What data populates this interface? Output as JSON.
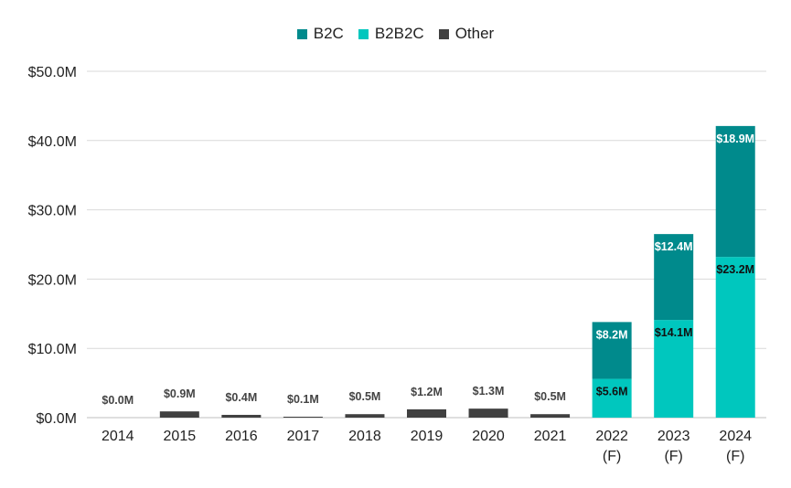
{
  "chart_data": {
    "type": "bar",
    "stacked": true,
    "categories": [
      "2014",
      "2015",
      "2016",
      "2017",
      "2018",
      "2019",
      "2020",
      "2021",
      "2022 (F)",
      "2023 (F)",
      "2024 (F)"
    ],
    "category_lines": [
      [
        "2014"
      ],
      [
        "2015"
      ],
      [
        "2016"
      ],
      [
        "2017"
      ],
      [
        "2018"
      ],
      [
        "2019"
      ],
      [
        "2020"
      ],
      [
        "2021"
      ],
      [
        "2022",
        "(F)"
      ],
      [
        "2023",
        "(F)"
      ],
      [
        "2024",
        "(F)"
      ]
    ],
    "series": [
      {
        "name": "Other",
        "color": "#404040",
        "values": [
          0.0,
          0.9,
          0.4,
          0.1,
          0.5,
          1.2,
          1.3,
          0.5,
          0,
          0,
          0
        ],
        "labels": [
          "$0.0M",
          "$0.9M",
          "$0.4M",
          "$0.1M",
          "$0.5M",
          "$1.2M",
          "$1.3M",
          "$0.5M",
          "",
          "",
          ""
        ]
      },
      {
        "name": "B2B2C",
        "color": "#00c7be",
        "values": [
          0,
          0,
          0,
          0,
          0,
          0,
          0,
          0,
          5.6,
          14.1,
          23.2
        ],
        "labels": [
          "",
          "",
          "",
          "",
          "",
          "",
          "",
          "",
          "$5.6M",
          "$14.1M",
          "$23.2M"
        ]
      },
      {
        "name": "B2C",
        "color": "#008a8c",
        "values": [
          0,
          0,
          0,
          0,
          0,
          0,
          0,
          0,
          8.2,
          12.4,
          18.9
        ],
        "labels": [
          "",
          "",
          "",
          "",
          "",
          "",
          "",
          "",
          "$8.2M",
          "$12.4M",
          "$18.9M"
        ]
      }
    ],
    "legend_order": [
      "B2C",
      "B2B2C",
      "Other"
    ],
    "legend_position": "top",
    "ylim": [
      0,
      50
    ],
    "yticks": [
      0,
      10,
      20,
      30,
      40,
      50
    ],
    "ytick_labels": [
      "$0.0M",
      "$10.0M",
      "$20.0M",
      "$30.0M",
      "$40.0M",
      "$50.0M"
    ],
    "grid": true,
    "title": "",
    "xlabel": "",
    "ylabel": ""
  }
}
